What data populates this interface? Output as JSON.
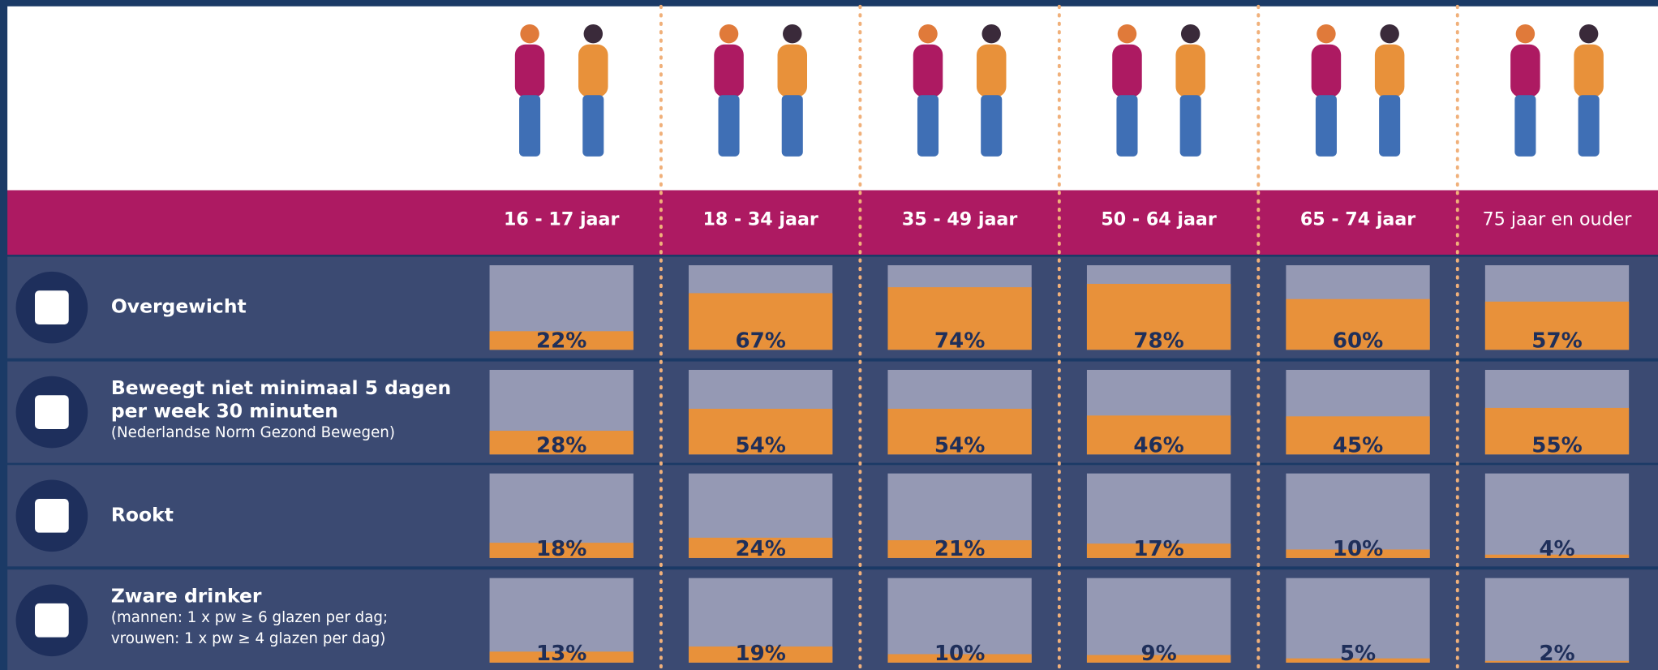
{
  "chart_data": {
    "type": "gauge-grid",
    "categories": [
      "16 - 17 jaar",
      "18 - 34 jaar",
      "35 - 49 jaar",
      "50 - 64 jaar",
      "65 - 74 jaar",
      "75 jaar en ouder"
    ],
    "ylim": [
      0,
      100
    ],
    "fill_color": "#e8913a",
    "empty_color": "#9599b4",
    "series": [
      {
        "label_lines": [
          "Overgewicht"
        ],
        "values": [
          22,
          67,
          74,
          78,
          60,
          57
        ],
        "value_labels": [
          "22%",
          "67%",
          "74%",
          "78%",
          "60%",
          "57%"
        ]
      },
      {
        "label_lines": [
          "Beweegt niet minimaal 5 dagen",
          "per week  30 minuten"
        ],
        "note_lines": [
          "(Nederlandse Norm Gezond Bewegen)"
        ],
        "values": [
          28,
          54,
          54,
          46,
          45,
          55
        ],
        "value_labels": [
          "28%",
          "54%",
          "54%",
          "46%",
          "45%",
          "55%"
        ]
      },
      {
        "label_lines": [
          "Rookt"
        ],
        "values": [
          18,
          24,
          21,
          17,
          10,
          4
        ],
        "value_labels": [
          "18%",
          "24%",
          "21%",
          "17%",
          "10%",
          "4%"
        ]
      },
      {
        "label_lines": [
          "Zware drinker"
        ],
        "note_lines": [
          "(mannen: 1 x pw ≥ 6 glazen per dag;",
          "vrouwen: 1 x pw ≥  4 glazen per dag)"
        ],
        "values": [
          13,
          19,
          10,
          9,
          5,
          2
        ],
        "value_labels": [
          "13%",
          "19%",
          "10%",
          "9%",
          "5%",
          "2%"
        ]
      }
    ]
  }
}
